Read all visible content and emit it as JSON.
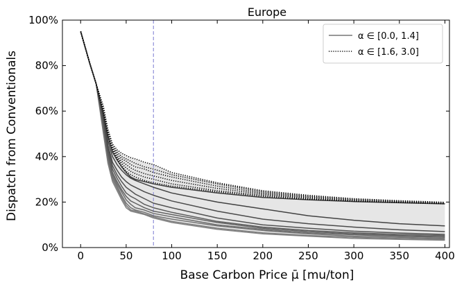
{
  "chart_data": {
    "type": "line",
    "title": "Europe",
    "xlabel": "Base Carbon Price μ̄ [mu/ton]",
    "ylabel": "Dispatch from Conventionals",
    "xlim": [
      -20,
      405
    ],
    "ylim": [
      0,
      100
    ],
    "xticks": [
      0,
      50,
      100,
      150,
      200,
      250,
      300,
      350,
      400
    ],
    "yticks": [
      0,
      20,
      40,
      60,
      80,
      100
    ],
    "ytick_labels": [
      "0%",
      "20%",
      "40%",
      "60%",
      "80%",
      "100%"
    ],
    "reference_line": {
      "x": 80,
      "color": "#9999dd",
      "style": "dashed"
    },
    "band_color": "#e6e6e6",
    "legend": {
      "position": "top-right",
      "entries": [
        {
          "label": "α ∈ [0.0, 1.4]",
          "style": "solid"
        },
        {
          "label": "α ∈ [1.6, 3.0]",
          "style": "dotted"
        }
      ]
    },
    "x": [
      0,
      10,
      17,
      25,
      30,
      35,
      40,
      45,
      50,
      55,
      60,
      70,
      80,
      100,
      150,
      200,
      250,
      300,
      350,
      400
    ],
    "series": [
      {
        "values": [
          95,
          81,
          72,
          50,
          37,
          29,
          25,
          21,
          17.5,
          16,
          15.5,
          14.5,
          13,
          11,
          8,
          6,
          5,
          4,
          3.6,
          3.2
        ],
        "group": "solid"
      },
      {
        "values": [
          95,
          81,
          72,
          51,
          38,
          30,
          26,
          22,
          18.5,
          16.5,
          16,
          14.8,
          13.5,
          11.5,
          8.5,
          6.5,
          5.3,
          4.5,
          4,
          3.6
        ],
        "group": "solid"
      },
      {
        "values": [
          95,
          81,
          72,
          52,
          39,
          31,
          27,
          23,
          19.5,
          17.5,
          16.5,
          15.5,
          14,
          12.5,
          9.5,
          7.5,
          6,
          5,
          4.5,
          4
        ],
        "group": "solid"
      },
      {
        "values": [
          95,
          81,
          72,
          53,
          40,
          32,
          28,
          24.5,
          21,
          19,
          17.5,
          16.5,
          15,
          13.5,
          10,
          8,
          6.5,
          5.6,
          5,
          4.5
        ],
        "group": "solid"
      },
      {
        "values": [
          95,
          81,
          72,
          54,
          41,
          33,
          29,
          25.5,
          22.5,
          20.5,
          19.5,
          17.5,
          16,
          14.5,
          11,
          8.5,
          7,
          6,
          5.3,
          4.8
        ],
        "group": "solid"
      },
      {
        "values": [
          95,
          81,
          72,
          55,
          42,
          34.5,
          30.5,
          27,
          24,
          22.5,
          21.5,
          19,
          17.5,
          15.5,
          11.5,
          9,
          7.5,
          6.5,
          5.8,
          5.3
        ],
        "group": "solid"
      },
      {
        "values": [
          95,
          81,
          72,
          56,
          43.5,
          36,
          32,
          29,
          26.5,
          25,
          23.5,
          21.5,
          19.5,
          17.5,
          13,
          10,
          8.5,
          7.2,
          6.4,
          5.8
        ],
        "group": "solid"
      },
      {
        "values": [
          95,
          81,
          72,
          57,
          45,
          37.5,
          34,
          31,
          29,
          27.5,
          26.5,
          24.5,
          23,
          20.5,
          16,
          12.5,
          10.5,
          9,
          7.8,
          7
        ],
        "group": "solid"
      },
      {
        "values": [
          95,
          81,
          72,
          58,
          47,
          40,
          36.5,
          34,
          32,
          30.5,
          29.5,
          28,
          26.5,
          24,
          20,
          17,
          14,
          12,
          10.5,
          9.5
        ],
        "group": "solid"
      },
      {
        "values": [
          95,
          81,
          72,
          59,
          49,
          42,
          38.5,
          35.5,
          33,
          31,
          30,
          29,
          28,
          26.5,
          24,
          22,
          21,
          20.2,
          19.7,
          19.2
        ],
        "group": "solid"
      },
      {
        "values": [
          95,
          81,
          72,
          59.5,
          49.5,
          42.5,
          39,
          36,
          33.5,
          32,
          31,
          29.5,
          28.5,
          27,
          24.5,
          22.5,
          21.2,
          20.4,
          19.8,
          19.3
        ],
        "group": "dotted"
      },
      {
        "values": [
          95,
          81,
          72,
          60,
          50,
          43,
          39.5,
          37,
          35,
          33.5,
          32.5,
          31,
          30,
          28,
          25,
          23,
          21.5,
          20.6,
          20,
          19.4
        ],
        "group": "dotted"
      },
      {
        "values": [
          95,
          81,
          72,
          60.5,
          50.5,
          43.5,
          40,
          38,
          36.5,
          35,
          34,
          32.5,
          31.5,
          29.5,
          26,
          23.5,
          21.8,
          20.8,
          20.1,
          19.5
        ],
        "group": "dotted"
      },
      {
        "values": [
          95,
          81,
          72,
          61,
          51,
          44,
          41,
          39,
          38,
          36.5,
          35.5,
          34.5,
          33,
          31,
          27,
          24,
          22.2,
          21,
          20.3,
          19.7
        ],
        "group": "dotted"
      },
      {
        "values": [
          95,
          81,
          72,
          61.5,
          51.5,
          44.5,
          42,
          40,
          39,
          38,
          37,
          35.5,
          34.5,
          32,
          28,
          24.5,
          22.6,
          21.3,
          20.5,
          19.8
        ],
        "group": "dotted"
      },
      {
        "values": [
          95,
          81,
          72,
          62,
          52,
          45.5,
          43,
          41.5,
          40.5,
          39.5,
          39,
          37.5,
          36.5,
          33,
          28.5,
          25,
          23,
          21.5,
          20.6,
          19.9
        ],
        "group": "dotted"
      }
    ]
  }
}
